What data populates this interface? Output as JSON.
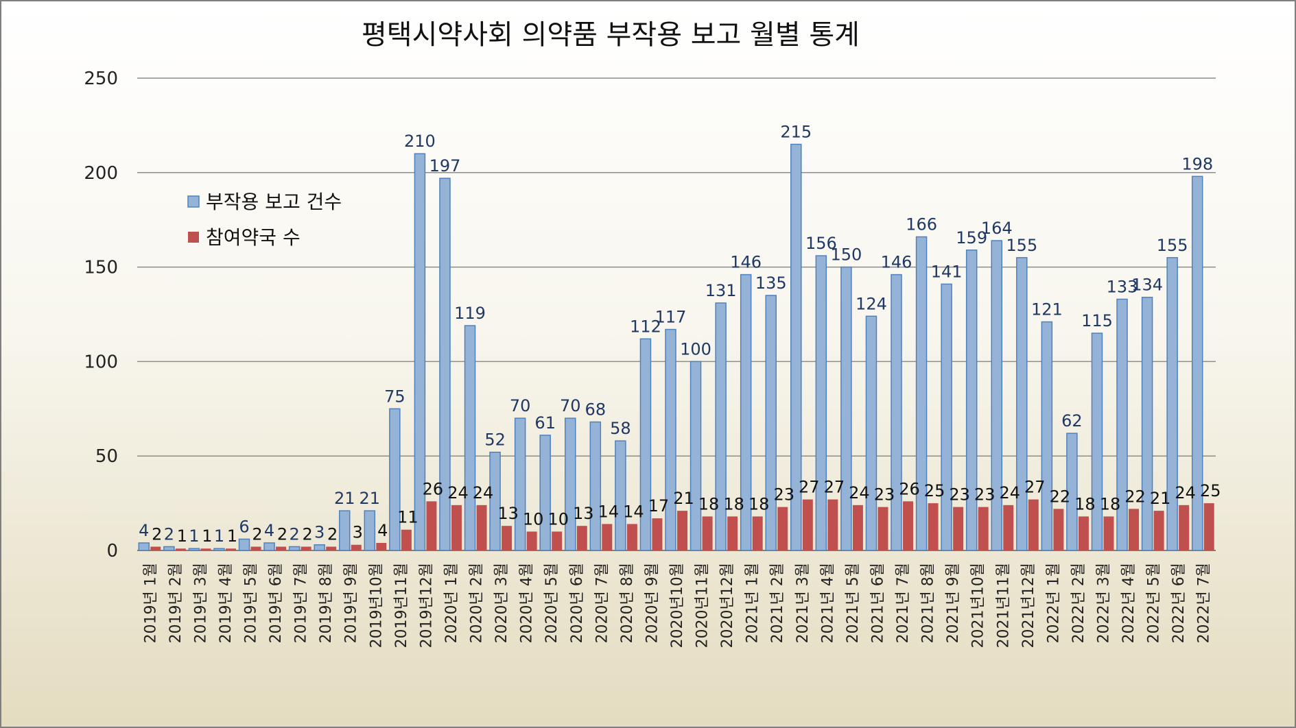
{
  "chart_data": {
    "type": "bar",
    "title": "평택시약사회 의약품 부작용 보고 월별 통계",
    "xlabel": "",
    "ylabel": "",
    "ylim": [
      0,
      250
    ],
    "yticks": [
      0,
      50,
      100,
      150,
      200,
      250
    ],
    "grid": true,
    "legend_position": "upper-left",
    "categories": [
      "2019년 1월",
      "2019년 2월",
      "2019년 3월",
      "2019년 4월",
      "2019년 5월",
      "2019년 6월",
      "2019년 7월",
      "2019년 8월",
      "2019년 9월",
      "2019년10월",
      "2019년11월",
      "2019년12월",
      "2020년 1월",
      "2020년 2월",
      "2020년 3월",
      "2020년 4월",
      "2020년 5월",
      "2020년 6월",
      "2020년 7월",
      "2020년 8월",
      "2020년 9월",
      "2020년10월",
      "2020년11월",
      "2020년12월",
      "2021년 1월",
      "2021년 2월",
      "2021년 3월",
      "2021년 4월",
      "2021년 5월",
      "2021년 6월",
      "2021년 7월",
      "2021년 8월",
      "2021년 9월",
      "2021년10월",
      "2021년11월",
      "2021년12월",
      "2022년 1월",
      "2022년 2월",
      "2022년 3월",
      "2022년 4월",
      "2022년 5월",
      "2022년 6월",
      "2022년 7월"
    ],
    "series": [
      {
        "name": "부작용 보고 건수",
        "color": "#95b3d7",
        "values": [
          4,
          2,
          1,
          1,
          6,
          4,
          2,
          3,
          21,
          21,
          75,
          210,
          197,
          119,
          52,
          70,
          61,
          70,
          68,
          58,
          112,
          117,
          100,
          131,
          146,
          135,
          215,
          156,
          150,
          124,
          146,
          166,
          141,
          159,
          164,
          155,
          121,
          62,
          115,
          133,
          134,
          155,
          198
        ]
      },
      {
        "name": "참여약국 수",
        "color": "#c0504d",
        "values": [
          2,
          1,
          1,
          1,
          2,
          2,
          2,
          2,
          3,
          4,
          11,
          26,
          24,
          24,
          13,
          10,
          10,
          13,
          14,
          14,
          17,
          21,
          18,
          18,
          18,
          23,
          27,
          27,
          24,
          23,
          26,
          25,
          23,
          23,
          24,
          27,
          22,
          18,
          18,
          22,
          21,
          24,
          25
        ]
      }
    ]
  }
}
